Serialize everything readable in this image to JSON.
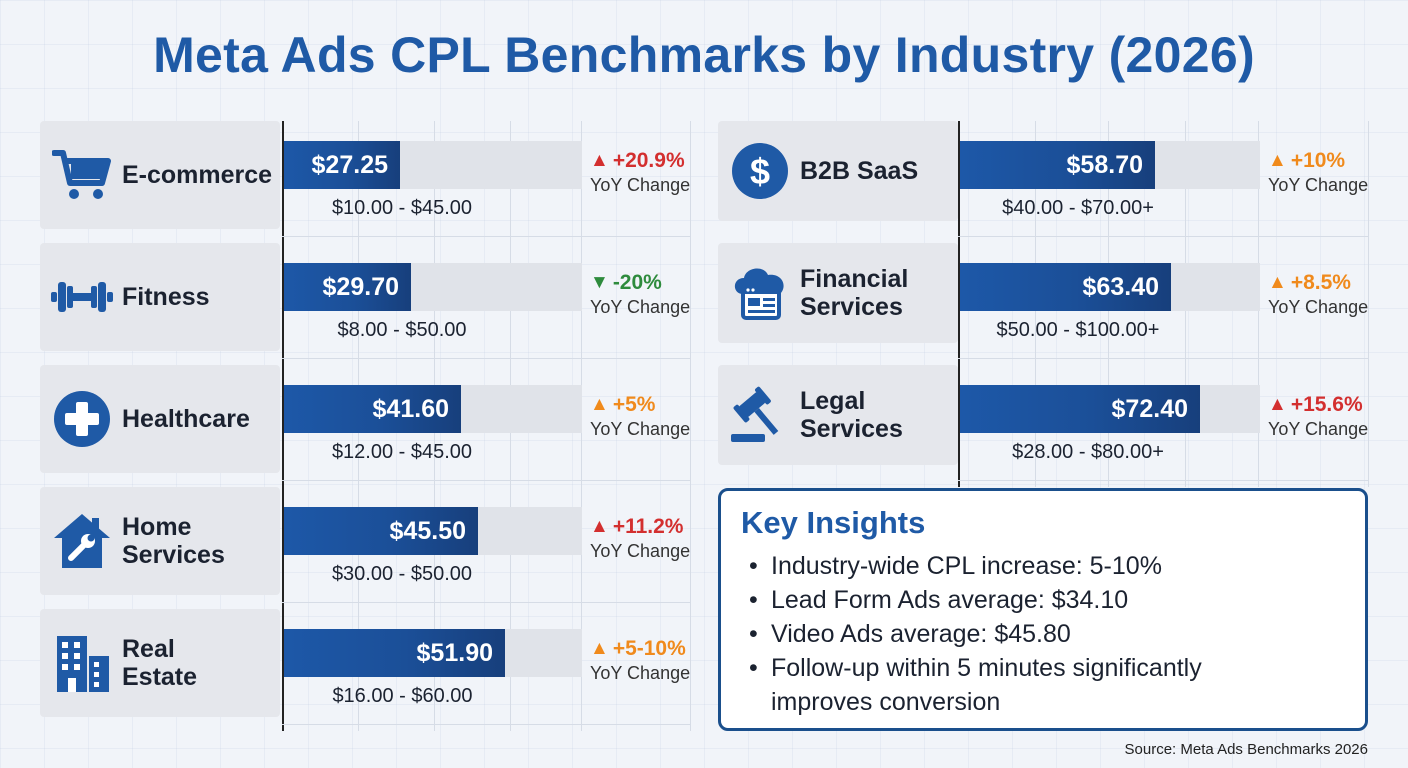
{
  "title": "Meta Ads CPL Benchmarks by Industry (2026)",
  "colors": {
    "title": "#1f5aa6",
    "bar": "#1b4f98",
    "up_red": "#d32f2f",
    "up_orange": "#f08a1c",
    "down_green": "#2e8b3d"
  },
  "chart_data": {
    "type": "bar",
    "orientation": "horizontal",
    "value_prefix": "$",
    "categories": [
      "E-commerce",
      "Fitness",
      "Healthcare",
      "Home Services",
      "Real Estate",
      "B2B SaaS",
      "Financial Services",
      "Legal Services"
    ],
    "series": [
      {
        "values": [
          27.25,
          29.7,
          41.6,
          45.5,
          51.9,
          58.7,
          63.4,
          72.4
        ]
      }
    ],
    "rows": [
      {
        "industry_line1": "E-commerce",
        "industry_line2": "",
        "icon": "shopping-cart-icon",
        "value": 27.25,
        "value_label": "$27.25",
        "range": "$10.00 - $45.00",
        "yoy": "+20.9%",
        "yoy_dir": "up",
        "yoy_color": "#d32f2f",
        "yoy_label": "YoY Change"
      },
      {
        "industry_line1": "Fitness",
        "industry_line2": "",
        "icon": "dumbbell-icon",
        "value": 29.7,
        "value_label": "$29.70",
        "range": "$8.00 - $50.00",
        "yoy": "-20%",
        "yoy_dir": "down",
        "yoy_color": "#2e8b3d",
        "yoy_label": "YoY Change"
      },
      {
        "industry_line1": "Healthcare",
        "industry_line2": "",
        "icon": "medical-cross-icon",
        "value": 41.6,
        "value_label": "$41.60",
        "range": "$12.00 - $45.00",
        "yoy": "+5%",
        "yoy_dir": "up",
        "yoy_color": "#f08a1c",
        "yoy_label": "YoY Change"
      },
      {
        "industry_line1": "Home",
        "industry_line2": "Services",
        "icon": "house-wrench-icon",
        "value": 45.5,
        "value_label": "$45.50",
        "range": "$30.00 - $50.00",
        "yoy": "+11.2%",
        "yoy_dir": "up",
        "yoy_color": "#d32f2f",
        "yoy_label": "YoY Change"
      },
      {
        "industry_line1": "Real",
        "industry_line2": "Estate",
        "icon": "buildings-icon",
        "value": 51.9,
        "value_label": "$51.90",
        "range": "$16.00 - $60.00",
        "yoy": "+5-10%",
        "yoy_dir": "up",
        "yoy_color": "#f08a1c",
        "yoy_label": "YoY Change"
      },
      {
        "industry_line1": "B2B SaaS",
        "industry_line2": "",
        "icon": "dollar-circle-icon",
        "value": 58.7,
        "value_label": "$58.70",
        "range": "$40.00 - $70.00+",
        "yoy": "+10%",
        "yoy_dir": "up",
        "yoy_color": "#f08a1c",
        "yoy_label": "YoY Change"
      },
      {
        "industry_line1": "Financial",
        "industry_line2": "Services",
        "icon": "cloud-browser-icon",
        "value": 63.4,
        "value_label": "$63.40",
        "range": "$50.00 - $100.00+",
        "yoy": "+8.5%",
        "yoy_dir": "up",
        "yoy_color": "#f08a1c",
        "yoy_label": "YoY Change"
      },
      {
        "industry_line1": "Legal",
        "industry_line2": "Services",
        "icon": "gavel-icon",
        "value": 72.4,
        "value_label": "$72.40",
        "range": "$28.00 - $80.00+",
        "yoy": "+15.6%",
        "yoy_dir": "up",
        "yoy_color": "#d32f2f",
        "yoy_label": "YoY Change"
      }
    ]
  },
  "insights": {
    "title": "Key Insights",
    "items": [
      "Industry-wide CPL increase: 5-10%",
      "Lead Form Ads average: $34.10",
      "Video Ads average: $45.80",
      "Follow-up within 5 minutes significantly improves conversion"
    ]
  },
  "source": "Source: Meta Ads Benchmarks 2026"
}
